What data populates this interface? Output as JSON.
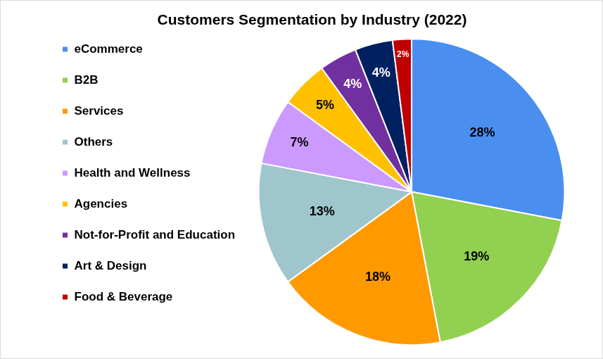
{
  "chart_data": {
    "type": "pie",
    "title": "Customers Segmentation by Industry (2022)",
    "categories": [
      "eCommerce",
      "B2B",
      "Services",
      "Others",
      "Health and Wellness",
      "Agencies",
      "Not-for-Profit and Education",
      "Art & Design",
      "Food & Beverage"
    ],
    "values": [
      28,
      19,
      18,
      13,
      7,
      5,
      4,
      4,
      2
    ],
    "value_labels": [
      "28%",
      "19%",
      "18%",
      "13%",
      "7%",
      "5%",
      "4%",
      "4%",
      "2%"
    ],
    "colors": [
      "#4a8ff0",
      "#92d050",
      "#ff9900",
      "#9fc6cd",
      "#cc99ff",
      "#ffc000",
      "#7030a0",
      "#002060",
      "#c00000"
    ],
    "legend": "left",
    "data_labels": true
  }
}
